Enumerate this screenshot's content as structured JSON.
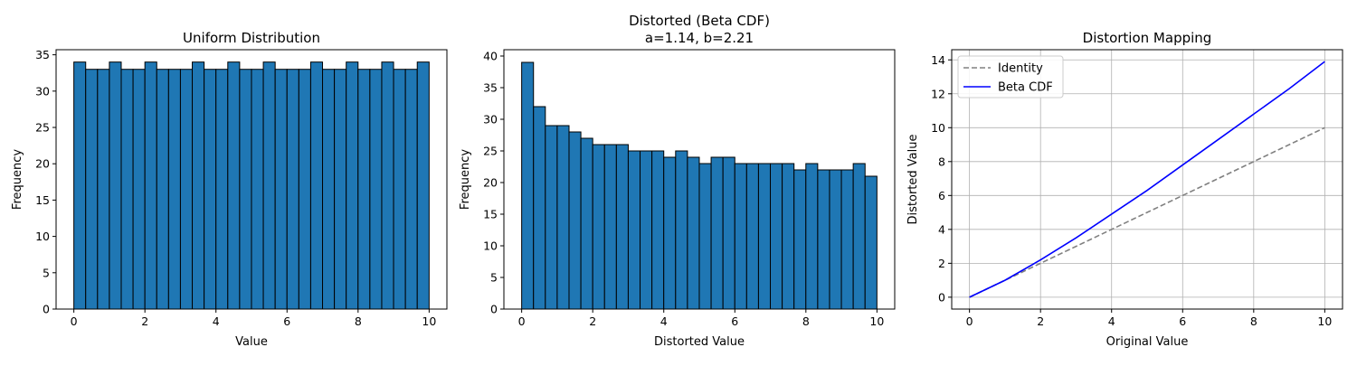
{
  "chart_data": [
    {
      "type": "bar",
      "subtype": "histogram",
      "title": [
        "Uniform Distribution"
      ],
      "xlabel": "Value",
      "ylabel": "Frequency",
      "xlim": [
        -0.5,
        10.5
      ],
      "ylim": [
        0,
        35.7
      ],
      "xticks": [
        0,
        2,
        4,
        6,
        8,
        10
      ],
      "yticks": [
        0,
        5,
        10,
        15,
        20,
        25,
        30,
        35
      ],
      "bin_start": 0,
      "bin_width": 0.3333,
      "values": [
        34,
        33,
        33,
        34,
        33,
        33,
        34,
        33,
        33,
        33,
        34,
        33,
        33,
        34,
        33,
        33,
        34,
        33,
        33,
        33,
        34,
        33,
        33,
        34,
        33,
        33,
        34,
        33,
        33,
        34
      ],
      "bar_color": "#1f77b4",
      "edge_color": "#000000"
    },
    {
      "type": "bar",
      "subtype": "histogram",
      "title": [
        "Distorted (Beta CDF)",
        "a=1.14, b=2.21"
      ],
      "xlabel": "Distorted Value",
      "ylabel": "Frequency",
      "xlim": [
        -0.5,
        10.5
      ],
      "ylim": [
        0,
        41
      ],
      "xticks": [
        0,
        2,
        4,
        6,
        8,
        10
      ],
      "yticks": [
        0,
        5,
        10,
        15,
        20,
        25,
        30,
        35,
        40
      ],
      "bin_start": 0,
      "bin_width": 0.3333,
      "values": [
        39,
        32,
        29,
        29,
        28,
        27,
        26,
        26,
        26,
        25,
        25,
        25,
        24,
        25,
        24,
        23,
        24,
        24,
        23,
        23,
        23,
        23,
        23,
        22,
        23,
        22,
        22,
        22,
        23,
        21
      ],
      "bar_color": "#1f77b4",
      "edge_color": "#000000"
    },
    {
      "type": "line",
      "title": [
        "Distortion Mapping"
      ],
      "xlabel": "Original Value",
      "ylabel": "Distorted Value",
      "xlim": [
        -0.5,
        10.5
      ],
      "ylim": [
        -0.7,
        14.6
      ],
      "xticks": [
        0,
        2,
        4,
        6,
        8,
        10
      ],
      "yticks": [
        0,
        2,
        4,
        6,
        8,
        10,
        12,
        14
      ],
      "grid": true,
      "legend": "top-left",
      "series": [
        {
          "name": "Identity",
          "color": "#808080",
          "dash": true,
          "x": [
            0,
            2,
            4,
            6,
            8,
            10
          ],
          "y": [
            0,
            2,
            4,
            6,
            8,
            10
          ]
        },
        {
          "name": "Beta CDF",
          "color": "#0000ff",
          "dash": false,
          "x": [
            0,
            1,
            2,
            3,
            4,
            5,
            6,
            7,
            8,
            9,
            10
          ],
          "y": [
            0,
            1.0,
            2.2,
            3.5,
            4.9,
            6.3,
            7.8,
            9.3,
            10.8,
            12.3,
            13.9
          ]
        }
      ]
    }
  ]
}
